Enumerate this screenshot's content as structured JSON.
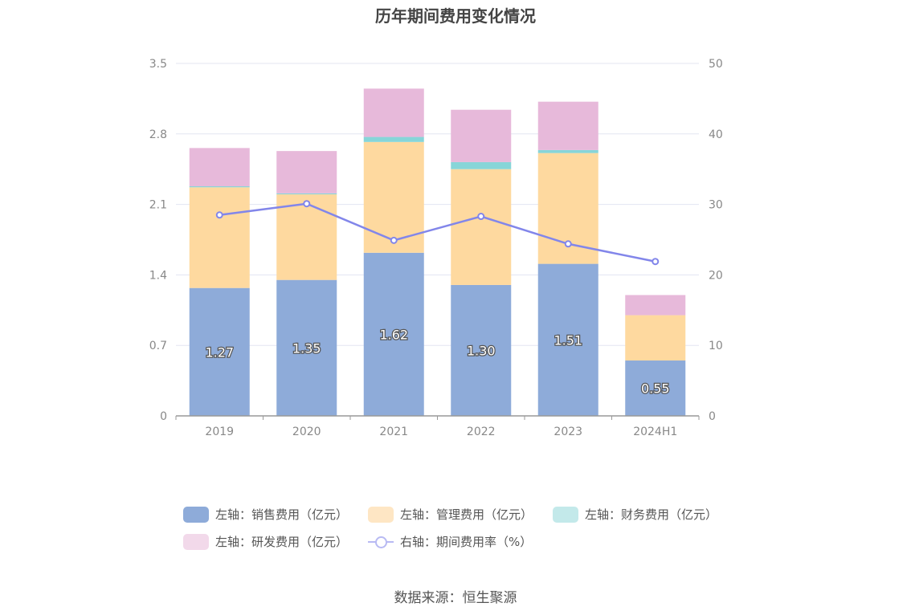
{
  "title": "历年期间费用变化情况",
  "source": "数据来源：恒生聚源",
  "chart_data": {
    "type": "bar",
    "stacked": true,
    "categories": [
      "2019",
      "2020",
      "2021",
      "2022",
      "2023",
      "2024H1"
    ],
    "left_axis": {
      "ylim": [
        0,
        3.5
      ],
      "ticks": [
        "0",
        "0.7",
        "1.4",
        "2.1",
        "2.8",
        "3.5"
      ]
    },
    "right_axis": {
      "ylim": [
        0,
        50
      ],
      "ticks": [
        "0",
        "10",
        "20",
        "30",
        "40",
        "50"
      ]
    },
    "grid": true,
    "legend_position": "bottom",
    "series": [
      {
        "name": "左轴：销售费用（亿元）",
        "type": "bar",
        "axis": "left",
        "color": "#8eabd9",
        "values": [
          1.27,
          1.35,
          1.62,
          1.3,
          1.51,
          0.55
        ],
        "labels": [
          "1.27",
          "1.35",
          "1.62",
          "1.30",
          "1.51",
          "0.55"
        ]
      },
      {
        "name": "左轴：管理费用（亿元）",
        "type": "bar",
        "axis": "left",
        "color": "#fed99f",
        "values": [
          1.0,
          0.85,
          1.1,
          1.15,
          1.1,
          0.45
        ]
      },
      {
        "name": "左轴：财务费用（亿元）",
        "type": "bar",
        "axis": "left",
        "color": "#87d5d8",
        "values": [
          0.01,
          0.01,
          0.05,
          0.07,
          0.03,
          0.0
        ]
      },
      {
        "name": "左轴：研发费用（亿元）",
        "type": "bar",
        "axis": "left",
        "color": "#e7b9da",
        "values": [
          0.38,
          0.42,
          0.48,
          0.52,
          0.48,
          0.2
        ]
      },
      {
        "name": "右轴：期间费用率（%）",
        "type": "line",
        "axis": "right",
        "color": "#8286ea",
        "values": [
          28.5,
          30.1,
          24.9,
          28.3,
          24.4,
          21.9
        ]
      }
    ]
  }
}
